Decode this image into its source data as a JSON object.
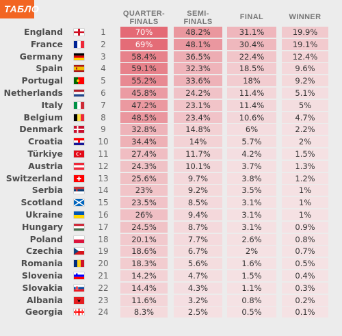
{
  "brand": {
    "logo_text": "ТАБЛО"
  },
  "columns": {
    "quarter": "QUARTER-\nFINALS",
    "semi": "SEMI-\nFINALS",
    "final": "FINAL",
    "winner": "WINNER"
  },
  "colors": {
    "accent": "#f26522",
    "heat_strong": "#e46a75",
    "heat_mid": "#eeb3b8",
    "heat_light": "#f3d7d9"
  },
  "rows": [
    {
      "country": "England",
      "flag": "england",
      "rank": "1",
      "qf": "70%",
      "sf": "48.2%",
      "f": "31.1%",
      "w": "19.9%"
    },
    {
      "country": "France",
      "flag": "france",
      "rank": "2",
      "qf": "69%",
      "sf": "48.1%",
      "f": "30.4%",
      "w": "19.1%"
    },
    {
      "country": "Germany",
      "flag": "germany",
      "rank": "3",
      "qf": "58.4%",
      "sf": "36.5%",
      "f": "22.4%",
      "w": "12.4%"
    },
    {
      "country": "Spain",
      "flag": "spain",
      "rank": "4",
      "qf": "59.1%",
      "sf": "32.3%",
      "f": "18.5%",
      "w": "9.6%"
    },
    {
      "country": "Portugal",
      "flag": "portugal",
      "rank": "5",
      "qf": "55.2%",
      "sf": "33.6%",
      "f": "18%",
      "w": "9.2%"
    },
    {
      "country": "Netherlands",
      "flag": "netherlands",
      "rank": "6",
      "qf": "45.8%",
      "sf": "24.2%",
      "f": "11.4%",
      "w": "5.1%"
    },
    {
      "country": "Italy",
      "flag": "italy",
      "rank": "7",
      "qf": "47.2%",
      "sf": "23.1%",
      "f": "11.4%",
      "w": "5%"
    },
    {
      "country": "Belgium",
      "flag": "belgium",
      "rank": "8",
      "qf": "48.5%",
      "sf": "23.4%",
      "f": "10.6%",
      "w": "4.7%"
    },
    {
      "country": "Denmark",
      "flag": "denmark",
      "rank": "9",
      "qf": "32.8%",
      "sf": "14.8%",
      "f": "6%",
      "w": "2.2%"
    },
    {
      "country": "Croatia",
      "flag": "croatia",
      "rank": "10",
      "qf": "34.4%",
      "sf": "14%",
      "f": "5.7%",
      "w": "2%"
    },
    {
      "country": "Türkiye",
      "flag": "turkey",
      "rank": "11",
      "qf": "27.4%",
      "sf": "11.7%",
      "f": "4.2%",
      "w": "1.5%"
    },
    {
      "country": "Austria",
      "flag": "austria",
      "rank": "12",
      "qf": "24.3%",
      "sf": "10.1%",
      "f": "3.7%",
      "w": "1.3%"
    },
    {
      "country": "Switzerland",
      "flag": "switzerland",
      "rank": "13",
      "qf": "25.6%",
      "sf": "9.7%",
      "f": "3.8%",
      "w": "1.2%"
    },
    {
      "country": "Serbia",
      "flag": "serbia",
      "rank": "14",
      "qf": "23%",
      "sf": "9.2%",
      "f": "3.5%",
      "w": "1%"
    },
    {
      "country": "Scotland",
      "flag": "scotland",
      "rank": "15",
      "qf": "23.5%",
      "sf": "8.5%",
      "f": "3.1%",
      "w": "1%"
    },
    {
      "country": "Ukraine",
      "flag": "ukraine",
      "rank": "16",
      "qf": "26%",
      "sf": "9.4%",
      "f": "3.1%",
      "w": "1%"
    },
    {
      "country": "Hungary",
      "flag": "hungary",
      "rank": "17",
      "qf": "24.5%",
      "sf": "8.7%",
      "f": "3.1%",
      "w": "0.9%"
    },
    {
      "country": "Poland",
      "flag": "poland",
      "rank": "18",
      "qf": "20.1%",
      "sf": "7.7%",
      "f": "2.6%",
      "w": "0.8%"
    },
    {
      "country": "Czechia",
      "flag": "czechia",
      "rank": "19",
      "qf": "18.6%",
      "sf": "6.7%",
      "f": "2%",
      "w": "0.7%"
    },
    {
      "country": "Romania",
      "flag": "romania",
      "rank": "20",
      "qf": "18.3%",
      "sf": "5.6%",
      "f": "1.6%",
      "w": "0.5%"
    },
    {
      "country": "Slovenia",
      "flag": "slovenia",
      "rank": "21",
      "qf": "14.2%",
      "sf": "4.7%",
      "f": "1.5%",
      "w": "0.4%"
    },
    {
      "country": "Slovakia",
      "flag": "slovakia",
      "rank": "22",
      "qf": "14.4%",
      "sf": "4.3%",
      "f": "1.1%",
      "w": "0.3%"
    },
    {
      "country": "Albania",
      "flag": "albania",
      "rank": "23",
      "qf": "11.6%",
      "sf": "3.2%",
      "f": "0.8%",
      "w": "0.2%"
    },
    {
      "country": "Georgia",
      "flag": "georgia",
      "rank": "24",
      "qf": "8.3%",
      "sf": "2.5%",
      "f": "0.5%",
      "w": "0.1%"
    }
  ]
}
